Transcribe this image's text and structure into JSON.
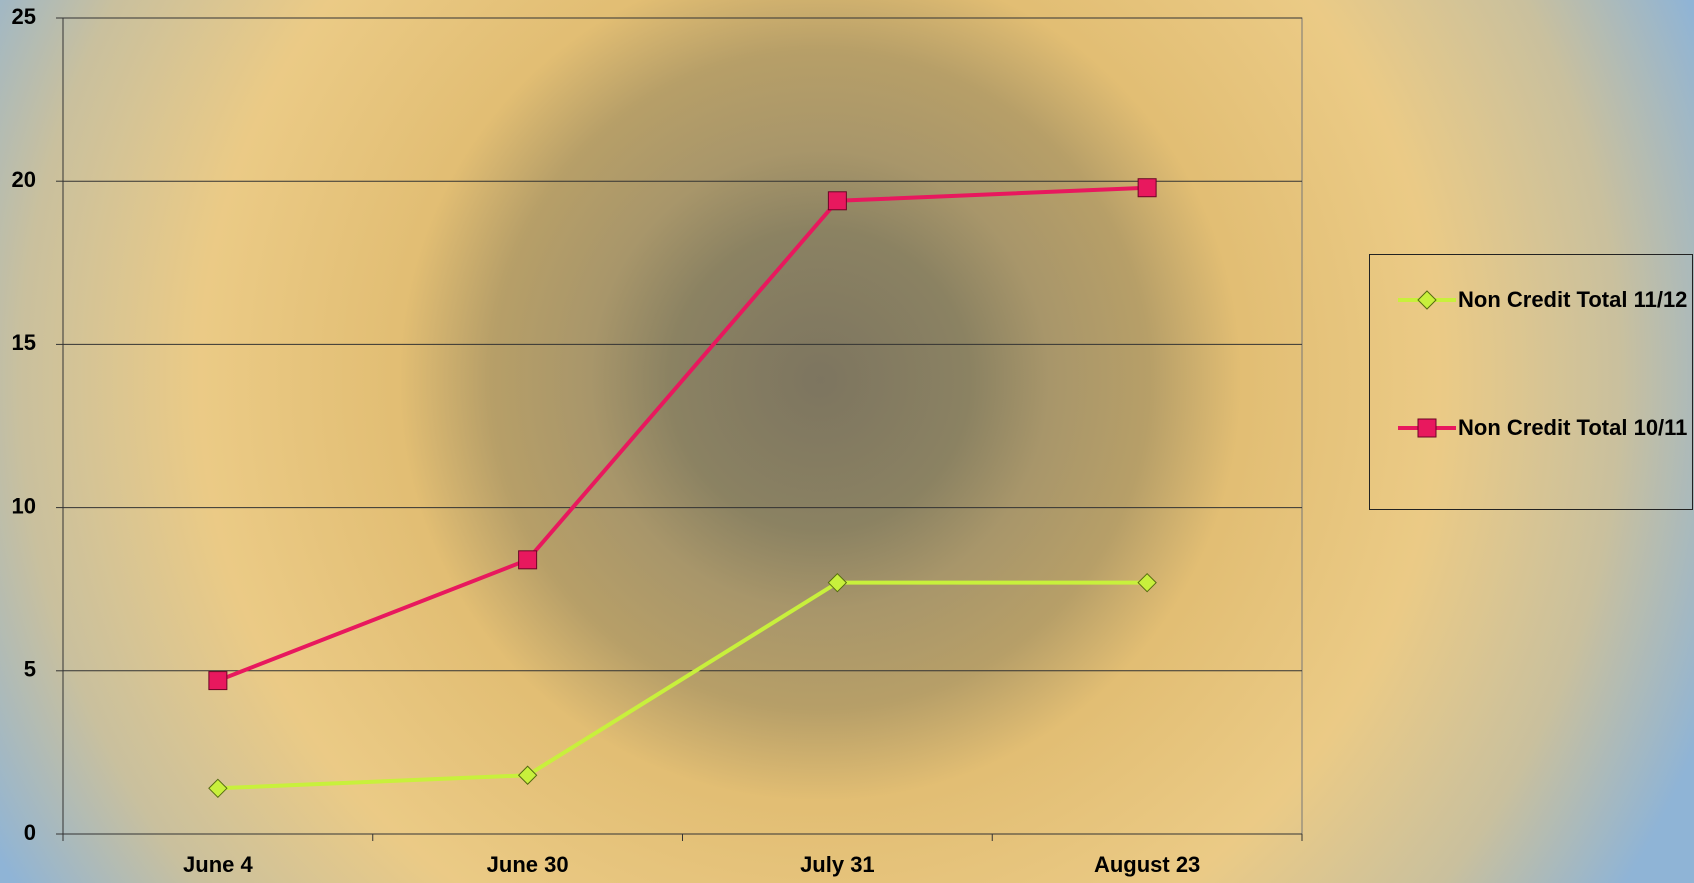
{
  "chart_data": {
    "type": "line",
    "categories": [
      "June 4",
      "June 30",
      "July 31",
      "August 23"
    ],
    "series": [
      {
        "name": "Non Credit Total 11/12",
        "color": "#c8f03c",
        "marker": "diamond",
        "values": [
          1.4,
          1.8,
          7.7,
          7.7
        ]
      },
      {
        "name": "Non Credit Total 10/11",
        "color": "#e8185e",
        "marker": "square",
        "values": [
          4.7,
          8.4,
          19.4,
          19.8
        ]
      }
    ],
    "ylim": [
      0,
      25
    ],
    "yticks": [
      0,
      5,
      10,
      15,
      20,
      25
    ],
    "grid": true,
    "legend": "right"
  }
}
